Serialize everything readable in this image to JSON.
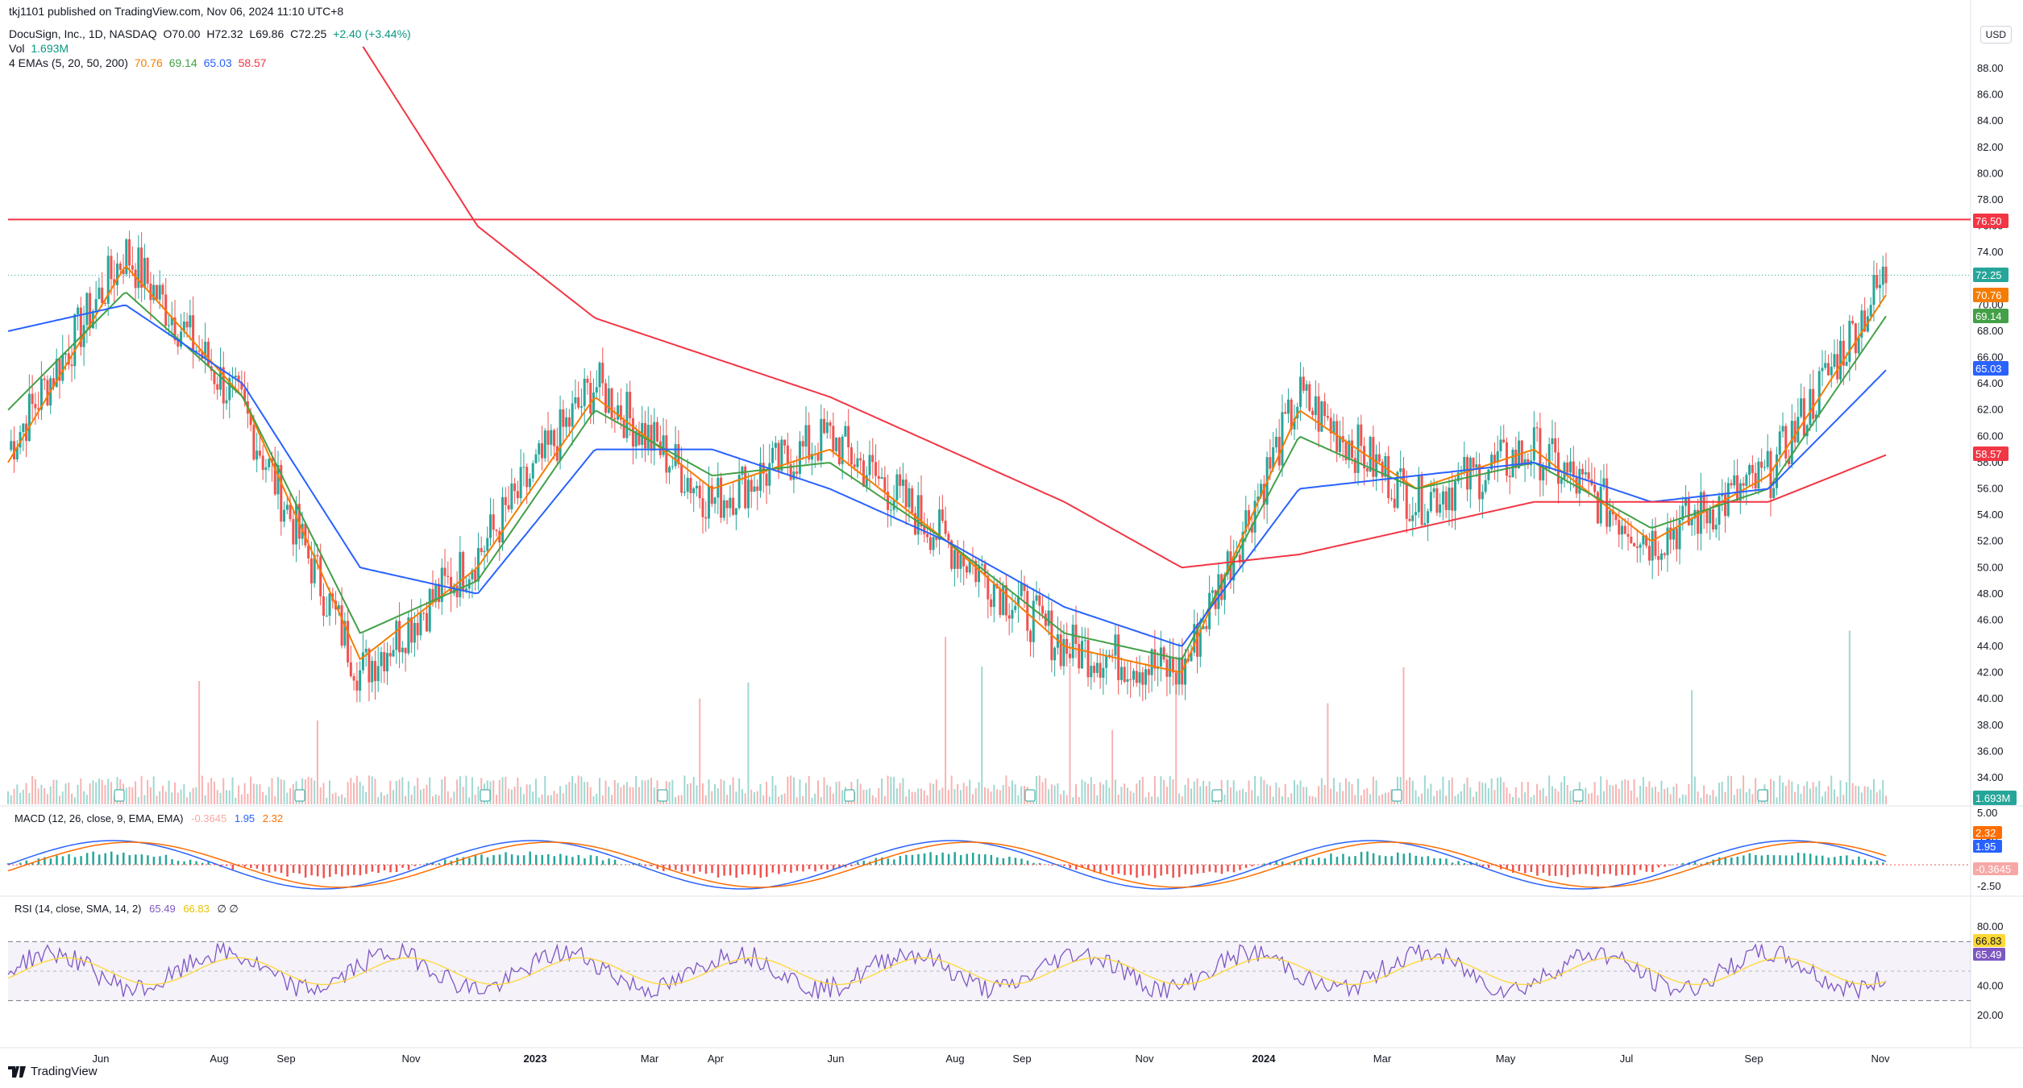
{
  "header": {
    "publisher": "tkj1101 published on TradingView.com, Nov 06, 2024 11:10 UTC+8",
    "symbol": "DocuSign, Inc., 1D, NASDAQ",
    "open": "O70.00",
    "high": "H72.32",
    "low": "L69.86",
    "close": "C72.25",
    "change": "+2.40 (+3.44%)",
    "vol_label": "Vol",
    "vol_value": "1.693M",
    "ema_label": "4 EMAs (5, 20, 50, 200)",
    "ema_values": [
      "70.76",
      "69.14",
      "65.03",
      "58.57"
    ]
  },
  "currency": "USD",
  "price_axis": [
    "88.00",
    "86.00",
    "84.00",
    "82.00",
    "80.00",
    "78.00",
    "76.00",
    "74.00",
    "72.00",
    "70.00",
    "68.00",
    "66.00",
    "64.00",
    "62.00",
    "60.00",
    "58.00",
    "56.00",
    "54.00",
    "52.00",
    "50.00",
    "48.00",
    "46.00",
    "44.00",
    "42.00",
    "40.00",
    "38.00",
    "36.00",
    "34.00"
  ],
  "time_axis": [
    "Jun",
    "Aug",
    "Sep",
    "Nov",
    "2023",
    "Mar",
    "Apr",
    "Jun",
    "Aug",
    "Sep",
    "Nov",
    "2024",
    "Mar",
    "May",
    "Jul",
    "Sep",
    "Nov"
  ],
  "price_tags": {
    "resistance": "76.50",
    "last": "72.25",
    "ema5": "70.76",
    "ema20": "69.14",
    "ema50": "65.03",
    "ema200": "58.57",
    "volume": "1.693M"
  },
  "macd": {
    "label": "MACD (12, 26, close, 9, EMA, EMA)",
    "hist": "-0.3645",
    "macd": "1.95",
    "signal": "2.32",
    "axis": [
      "5.00",
      "2.50",
      "-2.50"
    ]
  },
  "rsi": {
    "label": "RSI (14, close, SMA, 14, 2)",
    "rsi": "65.49",
    "ma": "66.83",
    "extra": "∅ ∅",
    "axis": [
      "80.00",
      "60.00",
      "40.00",
      "20.00"
    ]
  },
  "footer": {
    "brand": "TradingView"
  },
  "colors": {
    "up": "#26a69a",
    "down": "#ef5350",
    "ema5": "#f57c00",
    "ema20": "#43a047",
    "ema50": "#2962ff",
    "ema200": "#f23645",
    "resistance": "#f23645",
    "rsi": "#7e57c2",
    "rsi_ma": "#fdd835"
  },
  "chart_data": {
    "type": "line",
    "title": "DocuSign, Inc., 1D, NASDAQ",
    "x": [
      "Jun",
      "Aug",
      "Sep",
      "Nov",
      "2023",
      "Mar",
      "Apr",
      "Jun",
      "Aug",
      "Sep",
      "Nov",
      "2024",
      "Mar",
      "May",
      "Jul",
      "Sep",
      "Nov"
    ],
    "series": [
      {
        "name": "Close",
        "values": [
          59,
          74,
          62,
          42,
          51,
          64,
          55,
          60,
          52,
          44,
          42,
          63,
          55,
          59,
          52,
          57,
          72.25
        ]
      },
      {
        "name": "EMA 5",
        "values": [
          58,
          73,
          63,
          43,
          50,
          63,
          56,
          59,
          52,
          44,
          42,
          62,
          56,
          59,
          52,
          57,
          70.76
        ]
      },
      {
        "name": "EMA 20",
        "values": [
          62,
          71,
          63,
          45,
          49,
          62,
          57,
          58,
          52,
          45,
          43,
          60,
          56,
          58,
          53,
          56,
          69.14
        ]
      },
      {
        "name": "EMA 50",
        "values": [
          68,
          70,
          64,
          50,
          48,
          59,
          59,
          56,
          52,
          47,
          44,
          56,
          57,
          58,
          55,
          56,
          65.03
        ]
      },
      {
        "name": "EMA 200",
        "values": [
          null,
          null,
          null,
          90,
          76,
          69,
          66,
          63,
          59,
          55,
          50,
          51,
          53,
          55,
          55,
          55,
          58.57
        ]
      }
    ],
    "resistance": 76.5,
    "ylim": [
      33,
      92
    ],
    "ylabel": "USD"
  }
}
